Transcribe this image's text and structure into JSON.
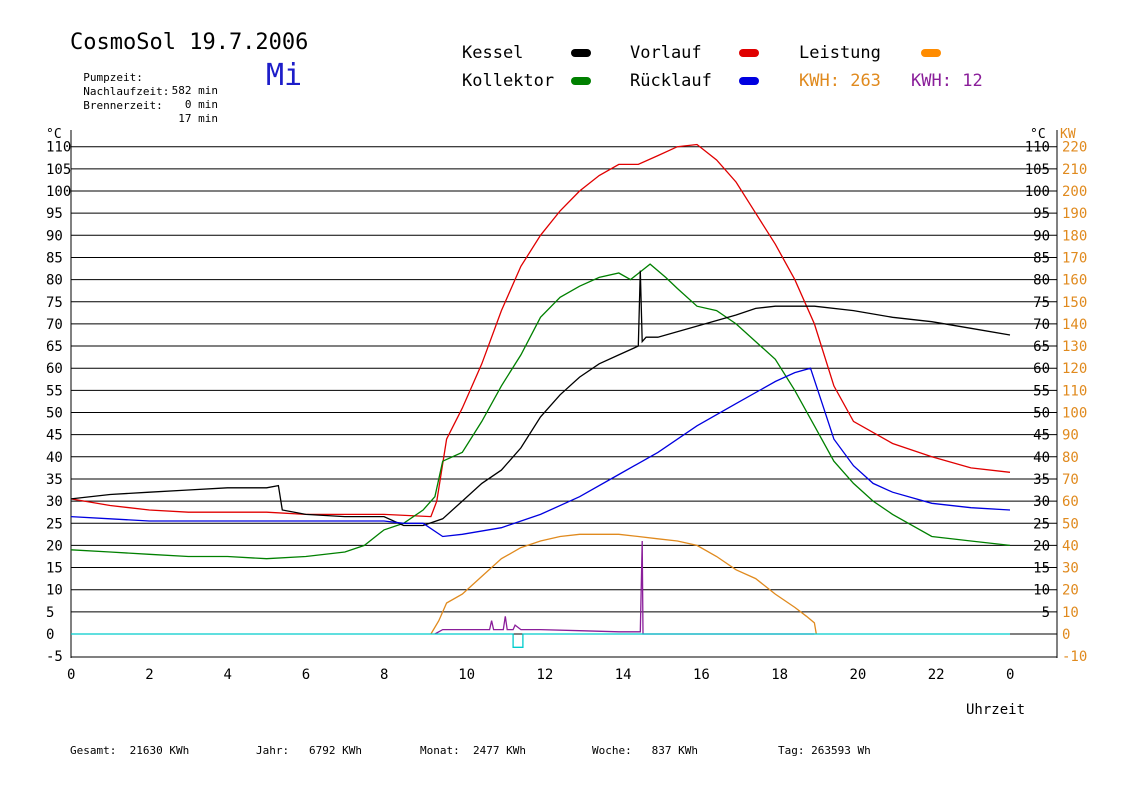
{
  "header": {
    "title": "CosmoSol 19.7.2006",
    "day": "Mi",
    "info": [
      {
        "label": "Pumpzeit:",
        "value": "582 min"
      },
      {
        "label": "Nachlaufzeit:",
        "value": "0 min"
      },
      {
        "label": "Brennerzeit:",
        "value": "17 min"
      }
    ]
  },
  "legend": {
    "items": [
      {
        "label": "Kessel",
        "color": "#000000"
      },
      {
        "label": "Kollektor",
        "color": "#008000"
      },
      {
        "label": "Vorlauf",
        "color": "#e00000"
      },
      {
        "label": "Rücklauf",
        "color": "#0000e0"
      },
      {
        "label": "Leistung",
        "color": "#ff8c00"
      }
    ],
    "kwh1": {
      "label": "KWH:",
      "value": "263",
      "color": "#e08a1e"
    },
    "kwh2": {
      "label": "KWH:",
      "value": "12",
      "color": "#8a1e9a"
    }
  },
  "footer": [
    {
      "label": "Gesamt:",
      "value": "21630 KWh"
    },
    {
      "label": "Jahr:",
      "value": "6792 KWh"
    },
    {
      "label": "Monat:",
      "value": "2477 KWh"
    },
    {
      "label": "Woche:",
      "value": "837 KWh"
    },
    {
      "label": "Tag:",
      "value": "263593 Wh"
    }
  ],
  "chart_data": {
    "type": "line",
    "xlabel": "Uhrzeit",
    "ylabel_left": "°C",
    "ylabel_right_1": "°C",
    "ylabel_right_2": "KW",
    "xlim": [
      0,
      24
    ],
    "ylim": [
      -5,
      115
    ],
    "x_ticks": [
      "0",
      "2",
      "4",
      "6",
      "8",
      "10",
      "12",
      "14",
      "16",
      "18",
      "20",
      "22",
      "0"
    ],
    "y_ticks_left": [
      "110",
      "105",
      "100",
      "95",
      "90",
      "85",
      "80",
      "75",
      "70",
      "65",
      "60",
      "55",
      "50",
      "45",
      "40",
      "35",
      "30",
      "25",
      "20",
      "15",
      "10",
      "5",
      "0",
      "-5"
    ],
    "y_ticks_right_temp": [
      "110",
      "105",
      "100",
      "95",
      "90",
      "85",
      "80",
      "75",
      "70",
      "65",
      "60",
      "55",
      "50",
      "45",
      "40",
      "35",
      "30",
      "25",
      "20",
      "15",
      "10",
      "5"
    ],
    "y_ticks_right_kw": [
      "220",
      "210",
      "200",
      "190",
      "180",
      "170",
      "160",
      "150",
      "140",
      "130",
      "120",
      "110",
      "100",
      "90",
      "80",
      "70",
      "60",
      "50",
      "40",
      "30",
      "20",
      "10",
      "0",
      "-10"
    ],
    "grid": true,
    "series": [
      {
        "name": "Vorlauf",
        "color": "#e00000",
        "x": [
          0,
          1,
          2,
          3,
          4,
          5,
          6,
          7,
          8,
          9.2,
          9.35,
          9.6,
          10,
          10.5,
          11,
          11.5,
          12,
          12.5,
          13,
          13.5,
          14,
          14.5,
          15,
          15.5,
          16,
          16.5,
          17,
          17.5,
          18,
          18.5,
          19,
          19.5,
          20,
          21,
          22,
          23,
          24
        ],
        "y": [
          30.5,
          29,
          28,
          27.5,
          27.5,
          27.5,
          27,
          27,
          27,
          26.5,
          30,
          44,
          51,
          61,
          73,
          83,
          90,
          95.5,
          100,
          103.5,
          106,
          106,
          108,
          110,
          110.5,
          107,
          102,
          95,
          88,
          80,
          70,
          56,
          48,
          43,
          40,
          37.5,
          36.5
        ]
      },
      {
        "name": "Kollektor",
        "color": "#008000",
        "x": [
          0,
          1,
          2,
          3,
          4,
          5,
          6,
          7,
          7.5,
          8,
          8.5,
          9,
          9.3,
          9.5,
          10,
          10.5,
          11,
          11.5,
          12,
          12.5,
          13,
          13.5,
          14,
          14.3,
          14.8,
          15.2,
          15.5,
          16,
          16.5,
          17,
          17.5,
          18,
          18.5,
          19,
          19.5,
          20,
          20.5,
          21,
          22,
          23,
          24
        ],
        "y": [
          19,
          18.5,
          18,
          17.5,
          17.5,
          17,
          17.5,
          18.5,
          20,
          23.5,
          25,
          28,
          31,
          39,
          41,
          48,
          56,
          63,
          71.5,
          76,
          78.5,
          80.5,
          81.5,
          80,
          83.5,
          80.5,
          78,
          74,
          73,
          70,
          66,
          62,
          55,
          47,
          39,
          34,
          30,
          27,
          22,
          21,
          20
        ]
      },
      {
        "name": "Kessel",
        "color": "#000000",
        "x": [
          0,
          1,
          2,
          3,
          4,
          5,
          5.3,
          5.4,
          6,
          7,
          8,
          8.5,
          9,
          9.5,
          10,
          10.5,
          11,
          11.5,
          12,
          12.5,
          13,
          13.5,
          14,
          14.5,
          14.55,
          14.6,
          14.7,
          15,
          16,
          17,
          17.5,
          18,
          18.5,
          19,
          20,
          21,
          22,
          23,
          24
        ],
        "y": [
          30.5,
          31.5,
          32,
          32.5,
          33,
          33,
          33.5,
          28,
          27,
          26.5,
          26.5,
          24.5,
          24.5,
          26,
          30,
          34,
          37,
          42,
          49,
          54,
          58,
          61,
          63,
          65,
          82,
          66,
          67,
          67,
          69.5,
          72,
          73.5,
          74,
          74,
          74,
          73,
          71.5,
          70.5,
          69,
          67.5
        ]
      },
      {
        "name": "Rücklauf",
        "color": "#0000e0",
        "x": [
          0,
          1,
          2,
          3,
          4,
          5,
          6,
          7,
          8,
          8.5,
          9,
          9.5,
          10,
          11,
          12,
          13,
          14,
          15,
          16,
          17,
          18,
          18.5,
          18.9,
          19.2,
          19.5,
          20,
          20.5,
          21,
          22,
          23,
          24
        ],
        "y": [
          26.5,
          26,
          25.5,
          25.5,
          25.5,
          25.5,
          25.5,
          25.5,
          25.5,
          25,
          25,
          22,
          22.5,
          24,
          27,
          31,
          36,
          41,
          47,
          52,
          57,
          59,
          60,
          52,
          44,
          38,
          34,
          32,
          29.5,
          28.5,
          28
        ]
      },
      {
        "name": "Leistung",
        "axis": "kw",
        "color": "#e08a1e",
        "x": [
          9.2,
          9.4,
          9.6,
          10,
          10.5,
          11,
          11.5,
          12,
          12.5,
          13,
          13.5,
          14,
          14.5,
          15,
          15.5,
          16,
          16.5,
          17,
          17.5,
          18,
          18.5,
          18.8,
          19,
          19.05
        ],
        "y": [
          0,
          6,
          14,
          18,
          26,
          34,
          39,
          42,
          44,
          45,
          45,
          45,
          44,
          43,
          42,
          40,
          35,
          29,
          25,
          18,
          12,
          8,
          5,
          0
        ]
      },
      {
        "name": "KWH 12",
        "axis": "kw",
        "color": "#8a1e9a",
        "x": [
          9.3,
          9.5,
          10,
          10.7,
          10.75,
          10.8,
          11.05,
          11.1,
          11.15,
          11.3,
          11.35,
          11.5,
          12,
          13,
          14,
          14.55,
          14.6,
          14.62,
          14.65,
          14.7,
          15,
          16,
          17,
          18,
          18.9,
          19
        ],
        "y": [
          0,
          2,
          2,
          2,
          6,
          2,
          2,
          8,
          2,
          2,
          4,
          2,
          2,
          1.5,
          1,
          1,
          42,
          0,
          0,
          0,
          0,
          0,
          0,
          0,
          0,
          0
        ]
      },
      {
        "name": "Brenner",
        "axis": "kw",
        "color": "#00cccc",
        "x": [
          0,
          11.3,
          11.3,
          11.55,
          11.55,
          24
        ],
        "y": [
          0,
          0,
          -6,
          -6,
          0,
          0
        ]
      }
    ]
  }
}
